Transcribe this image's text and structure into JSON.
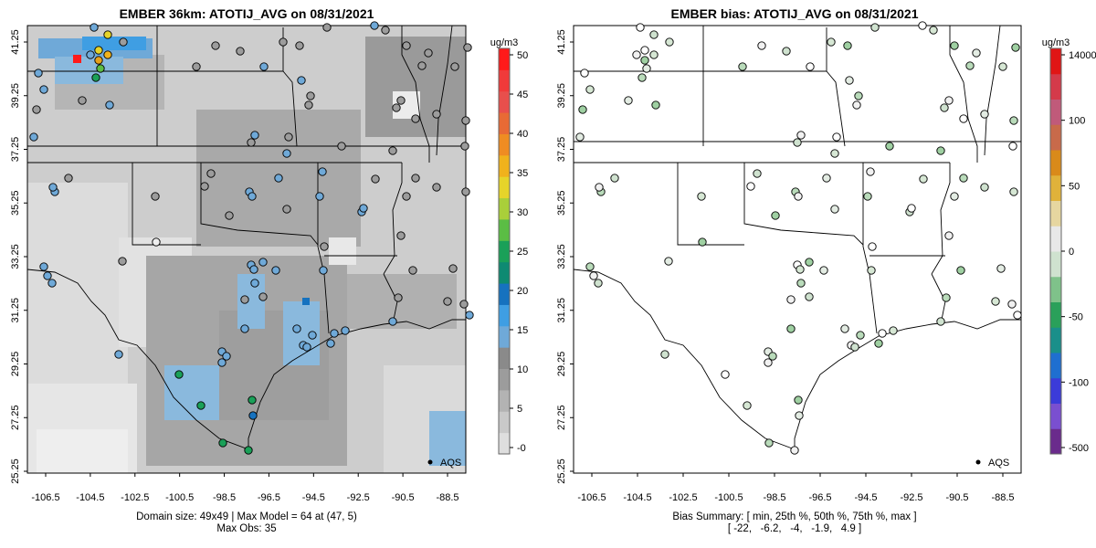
{
  "left_panel": {
    "title": "EMBER 36km: ATOTIJ_AVG on 08/31/2021",
    "lat_ticks": [
      "41.25",
      "39.25",
      "37.25",
      "35.25",
      "33.25",
      "31.25",
      "29.25",
      "27.25",
      "25.25"
    ],
    "lon_ticks": [
      "-106.5",
      "-104.5",
      "-102.5",
      "-100.5",
      "-98.5",
      "-96.5",
      "-94.5",
      "-92.5",
      "-90.5",
      "-88.5"
    ],
    "colorbar": {
      "unit": "ug/m3",
      "ticks": [
        "-0",
        "5",
        "10",
        "15",
        "20",
        "25",
        "30",
        "35",
        "40",
        "45",
        "50"
      ],
      "colors": [
        "#dedede",
        "#c9c9c9",
        "#b3b3b3",
        "#9c9c9c",
        "#8a8a8a",
        "#6fa9d8",
        "#3f9ee3",
        "#1672bf",
        "#0e8a72",
        "#1aa058",
        "#5bbd44",
        "#a9cf3a",
        "#e6d42a",
        "#f0b21c",
        "#ef8c22",
        "#e86a35",
        "#e84f4c",
        "#f03a3a",
        "#ff1a1a"
      ]
    },
    "legend_label": "AQS",
    "footer_line1": "Domain size: 49x49 | Max Model = 64 at (47, 5)",
    "footer_line2": "Max Obs: 35"
  },
  "right_panel": {
    "title": "EMBER bias: ATOTIJ_AVG on 08/31/2021",
    "lat_ticks": [
      "41.25",
      "39.25",
      "37.25",
      "35.25",
      "33.25",
      "31.25",
      "29.25",
      "27.25",
      "25.25"
    ],
    "lon_ticks": [
      "-106.5",
      "-104.5",
      "-102.5",
      "-100.5",
      "-98.5",
      "-96.5",
      "-94.5",
      "-92.5",
      "-90.5",
      "-88.5"
    ],
    "colorbar": {
      "unit": "ug/m3",
      "ticks": [
        "-500",
        "-100",
        "-50",
        "0",
        "50",
        "100",
        "14000"
      ],
      "colors": [
        "#6a2b8c",
        "#7a4fd0",
        "#3b3bd9",
        "#1f6fd0",
        "#1a8f8a",
        "#2aa05a",
        "#7fc28a",
        "#cfe2cf",
        "#e8e8e8",
        "#e6d6a0",
        "#e0b23a",
        "#d98a1a",
        "#c86a4a",
        "#c05a7a",
        "#d43a4a",
        "#e01515"
      ]
    },
    "legend_label": "AQS",
    "footer_line1": "Bias Summary: [ min, 25th %, 50th %, 75th %, max ]",
    "footer_line2": "[ -22,   -6.2,   -4,   -1.9,   4.9 ]"
  }
}
